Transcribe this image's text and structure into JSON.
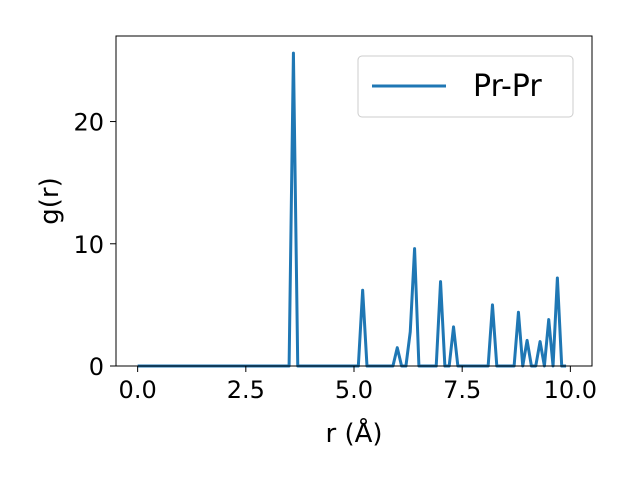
{
  "chart_data": {
    "type": "line",
    "title": "",
    "xlabel": "r (Å)",
    "ylabel": "g(r)",
    "xlim": [
      -0.5,
      10.5
    ],
    "ylim": [
      0,
      27
    ],
    "x_ticks": [
      0.0,
      2.5,
      5.0,
      7.5,
      10.0
    ],
    "x_tick_labels": [
      "0.0",
      "2.5",
      "5.0",
      "7.5",
      "10.0"
    ],
    "y_ticks": [
      0,
      10,
      20
    ],
    "y_tick_labels": [
      "0",
      "10",
      "20"
    ],
    "grid": false,
    "legend_position": "top-right",
    "series": [
      {
        "name": "Pr-Pr",
        "color": "#1f77b4",
        "x": [
          0.0,
          3.5,
          3.6,
          3.7,
          5.1,
          5.2,
          5.3,
          5.9,
          6.0,
          6.1,
          6.2,
          6.3,
          6.4,
          6.5,
          6.9,
          7.0,
          7.1,
          7.2,
          7.3,
          7.4,
          8.1,
          8.2,
          8.3,
          8.7,
          8.8,
          8.9,
          9.0,
          9.1,
          9.2,
          9.3,
          9.4,
          9.5,
          9.6,
          9.7,
          9.8,
          9.9
        ],
        "y": [
          0,
          0,
          25.6,
          0,
          0,
          6.2,
          0,
          0,
          1.5,
          0,
          0,
          2.8,
          9.6,
          0,
          0,
          6.9,
          0,
          0,
          3.2,
          0,
          0,
          5.0,
          0,
          0,
          4.4,
          0,
          2.1,
          0,
          0,
          2.0,
          0,
          3.8,
          0,
          7.2,
          0,
          0
        ]
      }
    ]
  }
}
